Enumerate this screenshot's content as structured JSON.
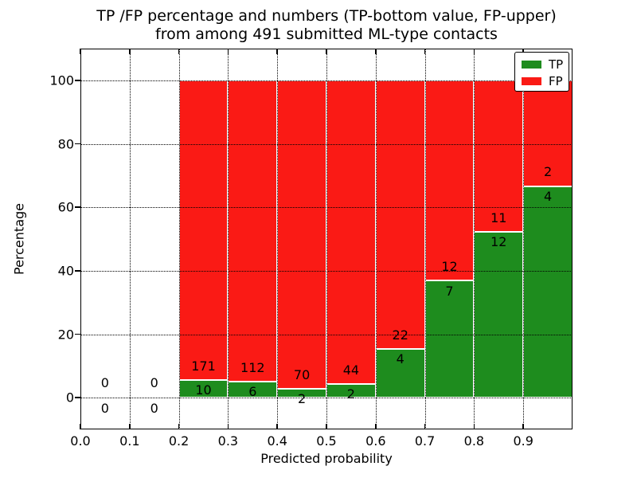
{
  "title_line1": "TP /FP percentage and numbers (TP-bottom value, FP-upper)",
  "title_line2": "from among 491 submitted ML-type contacts",
  "x_axis": {
    "label": "Predicted probability",
    "tick_labels": [
      "0.0",
      "0.1",
      "0.2",
      "0.3",
      "0.4",
      "0.5",
      "0.6",
      "0.7",
      "0.8",
      "0.9"
    ]
  },
  "y_axis": {
    "label": "Percentage",
    "tick_labels": [
      "0",
      "20",
      "40",
      "60",
      "80",
      "100"
    ]
  },
  "legend": {
    "items": [
      {
        "label": "TP",
        "color": "#1e8c1e"
      },
      {
        "label": "FP",
        "color": "#fa1a15"
      }
    ]
  },
  "chart_data": {
    "type": "bar",
    "stacked": true,
    "normalized_to_percent": true,
    "title": "TP /FP percentage and numbers (TP-bottom value, FP-upper) from among 491 submitted ML-type contacts",
    "xlabel": "Predicted probability",
    "ylabel": "Percentage",
    "xlim": [
      0.0,
      1.0
    ],
    "ylim": [
      -10,
      110
    ],
    "x_ticks": [
      0.0,
      0.1,
      0.2,
      0.3,
      0.4,
      0.5,
      0.6,
      0.7,
      0.8,
      0.9
    ],
    "y_ticks": [
      0,
      20,
      40,
      60,
      80,
      100
    ],
    "grid": true,
    "legend_position": "upper right",
    "series": [
      {
        "name": "TP",
        "color": "#1e8c1e"
      },
      {
        "name": "FP",
        "color": "#fa1a15"
      }
    ],
    "bins": [
      {
        "range": [
          0.0,
          0.1
        ],
        "tp": 0,
        "fp": 0
      },
      {
        "range": [
          0.1,
          0.2
        ],
        "tp": 0,
        "fp": 0
      },
      {
        "range": [
          0.2,
          0.3
        ],
        "tp": 10,
        "fp": 171
      },
      {
        "range": [
          0.3,
          0.4
        ],
        "tp": 6,
        "fp": 112
      },
      {
        "range": [
          0.4,
          0.5
        ],
        "tp": 2,
        "fp": 70
      },
      {
        "range": [
          0.5,
          0.6
        ],
        "tp": 2,
        "fp": 44
      },
      {
        "range": [
          0.6,
          0.7
        ],
        "tp": 4,
        "fp": 22
      },
      {
        "range": [
          0.7,
          0.8
        ],
        "tp": 7,
        "fp": 12
      },
      {
        "range": [
          0.8,
          0.9
        ],
        "tp": 12,
        "fp": 11
      },
      {
        "range": [
          0.9,
          1.0
        ],
        "tp": 4,
        "fp": 2
      }
    ]
  }
}
